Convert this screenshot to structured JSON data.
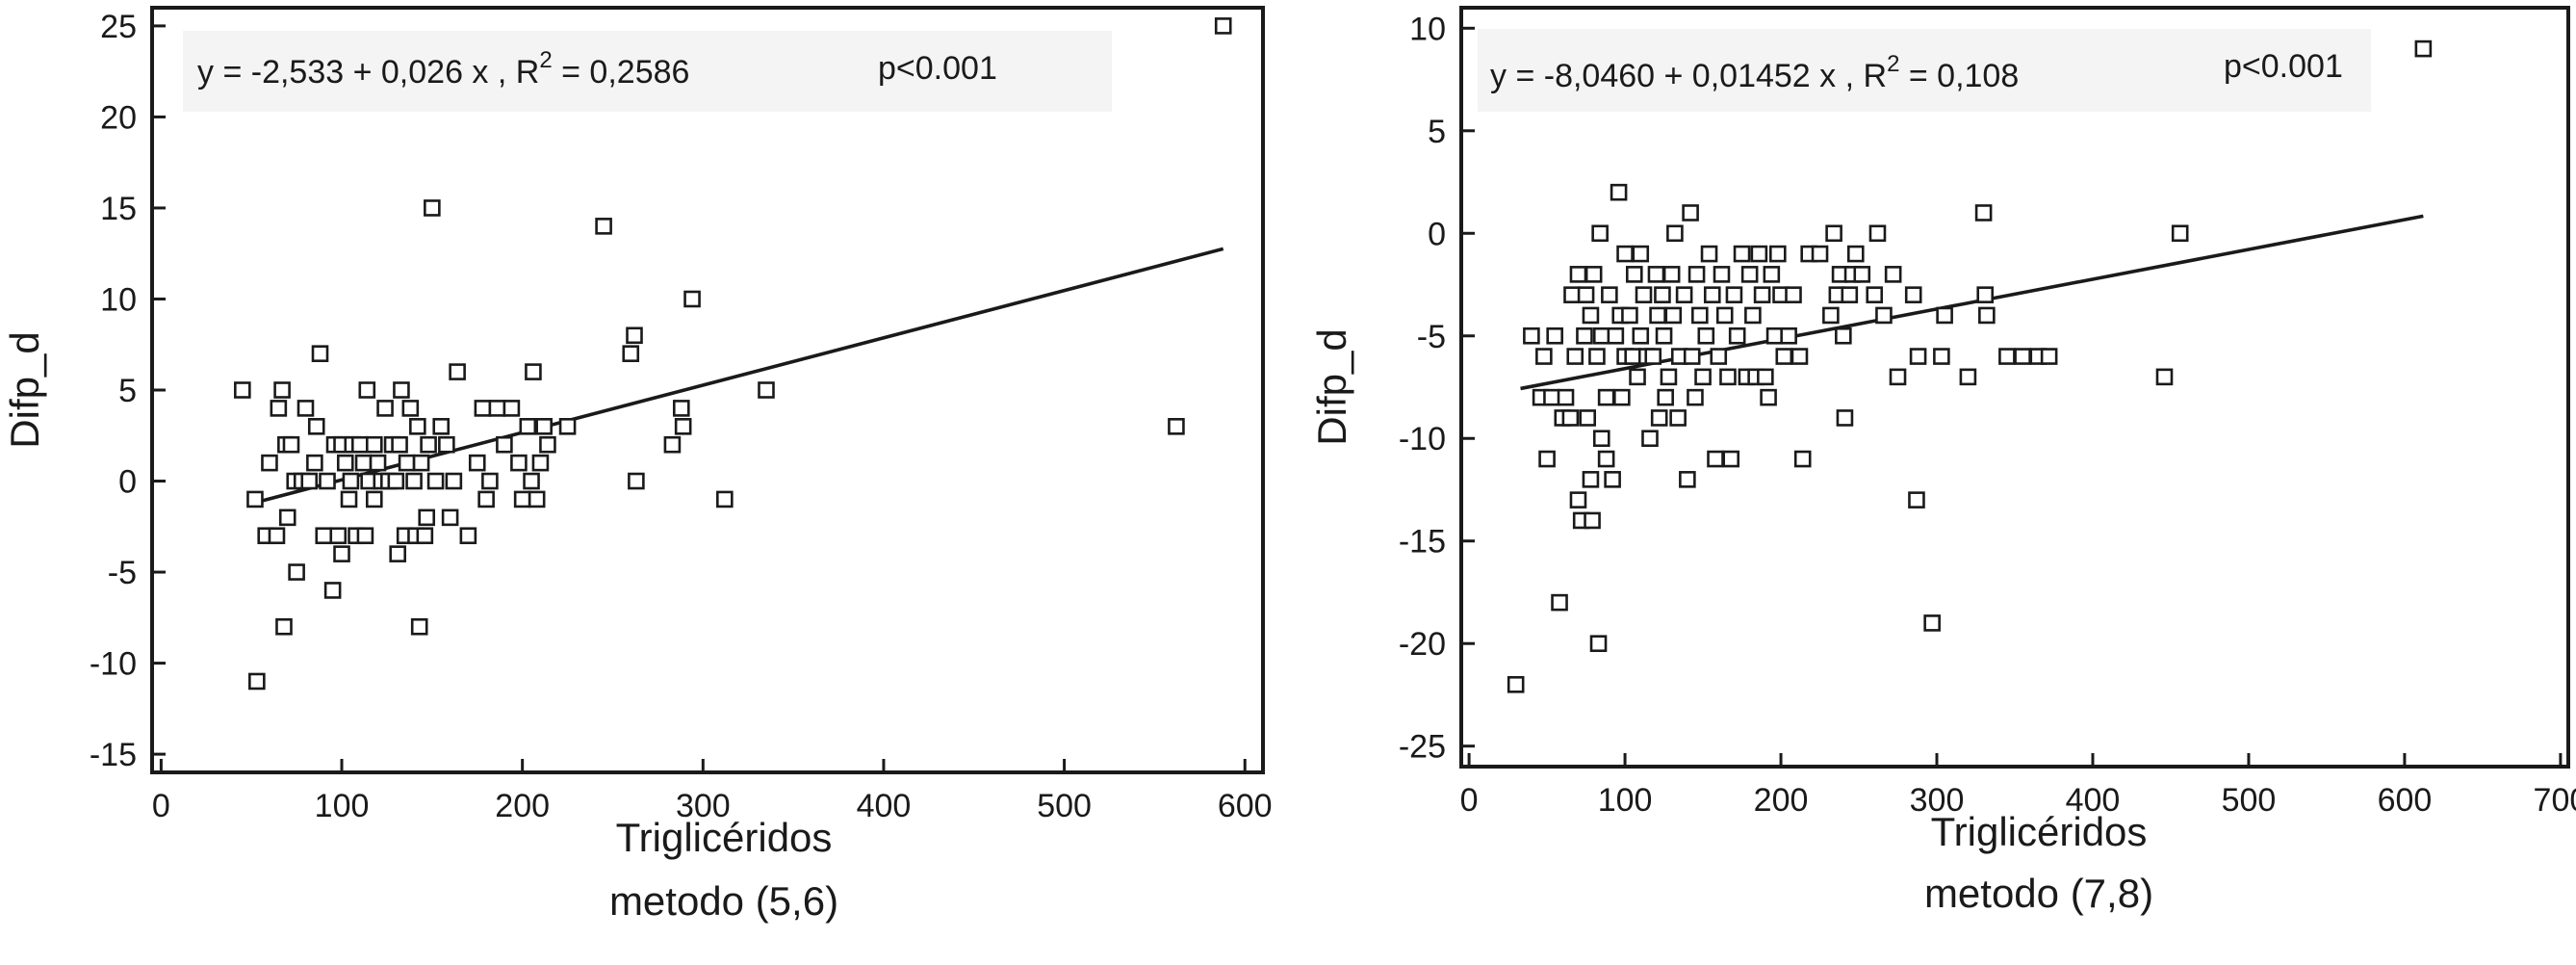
{
  "chart_data": [
    {
      "type": "scatter",
      "equation": {
        "prefix": "y = -2,533 + 0,026 x , R",
        "sup": "2",
        "suffix": " = 0,2586",
        "pvalue": "p<0.001"
      },
      "xlabel": "Triglicéridos",
      "xlabel_line2": "metodo (5,6)",
      "ylabel": "Difp_d",
      "xlim": [
        -5,
        610
      ],
      "ylim": [
        -16,
        26
      ],
      "xticks": [
        0,
        100,
        200,
        300,
        400,
        500,
        600
      ],
      "yticks": [
        -15,
        -10,
        -5,
        0,
        5,
        10,
        15,
        20,
        25
      ],
      "regression": {
        "intercept": -2.533,
        "slope": 0.026,
        "x_range": [
          50,
          588
        ]
      },
      "points": [
        [
          45,
          5
        ],
        [
          52,
          -1
        ],
        [
          53,
          -11
        ],
        [
          58,
          -3
        ],
        [
          60,
          1
        ],
        [
          64,
          -3
        ],
        [
          65,
          4
        ],
        [
          67,
          5
        ],
        [
          68,
          -8
        ],
        [
          69,
          2
        ],
        [
          70,
          -2
        ],
        [
          72,
          2
        ],
        [
          74,
          0
        ],
        [
          75,
          -5
        ],
        [
          78,
          0
        ],
        [
          80,
          4
        ],
        [
          82,
          0
        ],
        [
          85,
          1
        ],
        [
          86,
          3
        ],
        [
          88,
          7
        ],
        [
          90,
          -3
        ],
        [
          92,
          0
        ],
        [
          95,
          -6
        ],
        [
          96,
          2
        ],
        [
          98,
          -3
        ],
        [
          100,
          -4
        ],
        [
          100,
          2
        ],
        [
          102,
          1
        ],
        [
          104,
          -1
        ],
        [
          105,
          0
        ],
        [
          106,
          2
        ],
        [
          108,
          -3
        ],
        [
          110,
          2
        ],
        [
          112,
          1
        ],
        [
          113,
          -3
        ],
        [
          114,
          5
        ],
        [
          115,
          0
        ],
        [
          118,
          -1
        ],
        [
          118,
          2
        ],
        [
          120,
          1
        ],
        [
          122,
          0
        ],
        [
          124,
          4
        ],
        [
          126,
          0
        ],
        [
          128,
          2
        ],
        [
          130,
          0
        ],
        [
          131,
          -4
        ],
        [
          132,
          2
        ],
        [
          133,
          5
        ],
        [
          135,
          -3
        ],
        [
          136,
          1
        ],
        [
          138,
          4
        ],
        [
          140,
          0
        ],
        [
          141,
          -3
        ],
        [
          142,
          3
        ],
        [
          143,
          -8
        ],
        [
          144,
          1
        ],
        [
          146,
          -3
        ],
        [
          147,
          -2
        ],
        [
          148,
          2
        ],
        [
          150,
          15
        ],
        [
          152,
          0
        ],
        [
          155,
          3
        ],
        [
          158,
          2
        ],
        [
          160,
          -2
        ],
        [
          162,
          0
        ],
        [
          164,
          6
        ],
        [
          170,
          -3
        ],
        [
          175,
          1
        ],
        [
          178,
          4
        ],
        [
          180,
          -1
        ],
        [
          182,
          0
        ],
        [
          186,
          4
        ],
        [
          190,
          2
        ],
        [
          194,
          4
        ],
        [
          198,
          1
        ],
        [
          200,
          -1
        ],
        [
          203,
          3
        ],
        [
          205,
          0
        ],
        [
          206,
          6
        ],
        [
          208,
          -1
        ],
        [
          210,
          1
        ],
        [
          212,
          3
        ],
        [
          214,
          2
        ],
        [
          225,
          3
        ],
        [
          245,
          14
        ],
        [
          260,
          7
        ],
        [
          262,
          8
        ],
        [
          263,
          0
        ],
        [
          283,
          2
        ],
        [
          288,
          4
        ],
        [
          289,
          3
        ],
        [
          294,
          10
        ],
        [
          312,
          -1
        ],
        [
          335,
          5
        ],
        [
          562,
          3
        ],
        [
          588,
          25
        ]
      ]
    },
    {
      "type": "scatter",
      "equation": {
        "prefix": "y = -8,0460 + 0,01452 x , R",
        "sup": "2",
        "suffix": " = 0,108",
        "pvalue": "p<0.001"
      },
      "xlabel": "Triglicéridos",
      "xlabel_line2": "metodo (7,8)",
      "ylabel": "Difp_d",
      "xlim": [
        -5,
        705
      ],
      "ylim": [
        -26,
        11
      ],
      "xticks": [
        0,
        100,
        200,
        300,
        400,
        500,
        600,
        700
      ],
      "yticks": [
        -25,
        -20,
        -15,
        -10,
        -5,
        0,
        5,
        10
      ],
      "regression": {
        "intercept": -8.046,
        "slope": 0.01452,
        "x_range": [
          33,
          612
        ]
      },
      "points": [
        [
          30,
          -22
        ],
        [
          40,
          -5
        ],
        [
          46,
          -8
        ],
        [
          48,
          -6
        ],
        [
          50,
          -11
        ],
        [
          53,
          -8
        ],
        [
          55,
          -5
        ],
        [
          58,
          -18
        ],
        [
          60,
          -9
        ],
        [
          62,
          -8
        ],
        [
          65,
          -9
        ],
        [
          66,
          -3
        ],
        [
          68,
          -6
        ],
        [
          70,
          -13
        ],
        [
          70,
          -2
        ],
        [
          72,
          -14
        ],
        [
          74,
          -5
        ],
        [
          75,
          -3
        ],
        [
          76,
          -9
        ],
        [
          78,
          -12
        ],
        [
          78,
          -4
        ],
        [
          79,
          -14
        ],
        [
          80,
          -2
        ],
        [
          82,
          -6
        ],
        [
          83,
          -20
        ],
        [
          84,
          0
        ],
        [
          85,
          -10
        ],
        [
          85,
          -5
        ],
        [
          88,
          -8
        ],
        [
          88,
          -11
        ],
        [
          90,
          -3
        ],
        [
          92,
          -12
        ],
        [
          94,
          -5
        ],
        [
          96,
          2
        ],
        [
          97,
          -4
        ],
        [
          98,
          -8
        ],
        [
          100,
          -1
        ],
        [
          100,
          -6
        ],
        [
          103,
          -4
        ],
        [
          105,
          -6
        ],
        [
          106,
          -2
        ],
        [
          108,
          -7
        ],
        [
          110,
          -5
        ],
        [
          110,
          -1
        ],
        [
          112,
          -3
        ],
        [
          114,
          -6
        ],
        [
          116,
          -10
        ],
        [
          118,
          -6
        ],
        [
          120,
          -2
        ],
        [
          121,
          -4
        ],
        [
          122,
          -9
        ],
        [
          124,
          -3
        ],
        [
          125,
          -5
        ],
        [
          126,
          -8
        ],
        [
          128,
          -7
        ],
        [
          130,
          -2
        ],
        [
          131,
          -4
        ],
        [
          132,
          0
        ],
        [
          134,
          -9
        ],
        [
          135,
          -6
        ],
        [
          138,
          -3
        ],
        [
          140,
          -12
        ],
        [
          142,
          1
        ],
        [
          143,
          -6
        ],
        [
          145,
          -8
        ],
        [
          146,
          -2
        ],
        [
          148,
          -4
        ],
        [
          150,
          -7
        ],
        [
          152,
          -5
        ],
        [
          154,
          -1
        ],
        [
          156,
          -3
        ],
        [
          158,
          -11
        ],
        [
          160,
          -6
        ],
        [
          162,
          -2
        ],
        [
          164,
          -4
        ],
        [
          166,
          -7
        ],
        [
          168,
          -11
        ],
        [
          170,
          -3
        ],
        [
          172,
          -5
        ],
        [
          175,
          -1
        ],
        [
          178,
          -7
        ],
        [
          180,
          -2
        ],
        [
          182,
          -4
        ],
        [
          184,
          -7
        ],
        [
          186,
          -1
        ],
        [
          188,
          -3
        ],
        [
          190,
          -7
        ],
        [
          192,
          -8
        ],
        [
          194,
          -2
        ],
        [
          196,
          -5
        ],
        [
          198,
          -1
        ],
        [
          200,
          -3
        ],
        [
          202,
          -6
        ],
        [
          205,
          -5
        ],
        [
          208,
          -3
        ],
        [
          212,
          -6
        ],
        [
          214,
          -11
        ],
        [
          218,
          -1
        ],
        [
          225,
          -1
        ],
        [
          232,
          -4
        ],
        [
          234,
          0
        ],
        [
          236,
          -3
        ],
        [
          238,
          -2
        ],
        [
          240,
          -5
        ],
        [
          241,
          -9
        ],
        [
          244,
          -3
        ],
        [
          246,
          -2
        ],
        [
          248,
          -1
        ],
        [
          252,
          -2
        ],
        [
          260,
          -3
        ],
        [
          262,
          0
        ],
        [
          266,
          -4
        ],
        [
          272,
          -2
        ],
        [
          275,
          -7
        ],
        [
          285,
          -3
        ],
        [
          287,
          -13
        ],
        [
          288,
          -6
        ],
        [
          297,
          -19
        ],
        [
          303,
          -6
        ],
        [
          305,
          -4
        ],
        [
          320,
          -7
        ],
        [
          330,
          1
        ],
        [
          331,
          -3
        ],
        [
          332,
          -4
        ],
        [
          345,
          -6
        ],
        [
          355,
          -6
        ],
        [
          365,
          -6
        ],
        [
          372,
          -6
        ],
        [
          446,
          -7
        ],
        [
          456,
          0
        ],
        [
          612,
          9
        ]
      ]
    }
  ]
}
